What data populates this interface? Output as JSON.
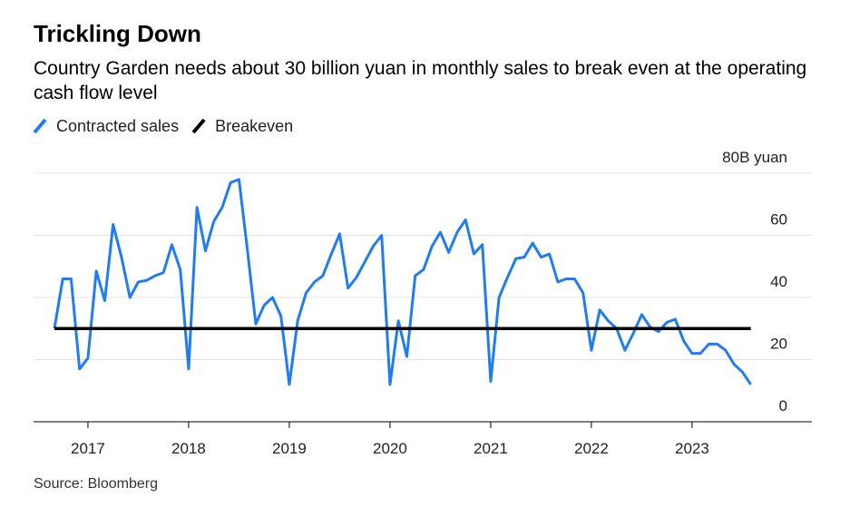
{
  "chart_data": {
    "type": "line",
    "title": "Trickling Down",
    "subtitle": "Country Garden needs about 30 billion yuan in monthly sales to break even at the operating cash flow level",
    "source": "Source: Bloomberg",
    "series": [
      {
        "name": "Contracted sales",
        "color": "#1f7cf2",
        "x": [
          2016.667,
          2016.75,
          2016.833,
          2016.917,
          2017,
          2017.083,
          2017.167,
          2017.25,
          2017.333,
          2017.417,
          2017.5,
          2017.583,
          2017.667,
          2017.75,
          2017.833,
          2017.917,
          2018,
          2018.083,
          2018.167,
          2018.25,
          2018.333,
          2018.417,
          2018.5,
          2018.583,
          2018.667,
          2018.75,
          2018.833,
          2018.917,
          2019,
          2019.083,
          2019.167,
          2019.25,
          2019.333,
          2019.417,
          2019.5,
          2019.583,
          2019.667,
          2019.75,
          2019.833,
          2019.917,
          2020,
          2020.083,
          2020.167,
          2020.25,
          2020.333,
          2020.417,
          2020.5,
          2020.583,
          2020.667,
          2020.75,
          2020.833,
          2020.917,
          2021,
          2021.083,
          2021.167,
          2021.25,
          2021.333,
          2021.417,
          2021.5,
          2021.583,
          2021.667,
          2021.75,
          2021.833,
          2021.917,
          2022,
          2022.083,
          2022.167,
          2022.25,
          2022.333,
          2022.417,
          2022.5,
          2022.583,
          2022.667,
          2022.75,
          2022.833,
          2022.917,
          2023,
          2023.083,
          2023.167,
          2023.25,
          2023.333,
          2023.417,
          2023.5,
          2023.583
        ],
        "values": [
          30,
          46,
          46,
          17,
          20.5,
          48.5,
          39,
          63.5,
          53,
          40,
          45,
          45.5,
          47,
          48,
          57,
          49,
          17,
          69,
          55,
          64.5,
          69,
          77,
          78,
          55.5,
          31.5,
          37.5,
          40,
          34,
          12,
          32.5,
          41.5,
          45,
          47,
          54,
          60.5,
          43,
          46.5,
          51.5,
          56.5,
          60,
          12,
          32.5,
          21,
          47,
          49,
          56.5,
          61,
          54.5,
          61,
          65,
          54,
          57,
          13,
          40,
          46.5,
          52.5,
          53,
          57.5,
          53,
          54,
          45,
          46,
          46,
          41.5,
          23,
          36,
          32.5,
          30,
          23,
          28.5,
          34.5,
          30.5,
          29,
          32,
          33,
          26,
          22,
          22,
          25,
          25,
          23,
          18.5,
          16,
          12
        ]
      },
      {
        "name": "Breakeven",
        "color": "#000000",
        "x": [
          2016.667,
          2023.583
        ],
        "values": [
          30,
          30
        ]
      }
    ],
    "xlim": [
      2016.46,
      2024.19
    ],
    "xticks": [
      2017,
      2018,
      2019,
      2020,
      2021,
      2022,
      2023
    ],
    "ylim": [
      0,
      80
    ],
    "yticks": [
      0,
      20,
      40,
      60,
      {
        "value": 80,
        "label": "80B yuan"
      }
    ],
    "grid": true
  }
}
